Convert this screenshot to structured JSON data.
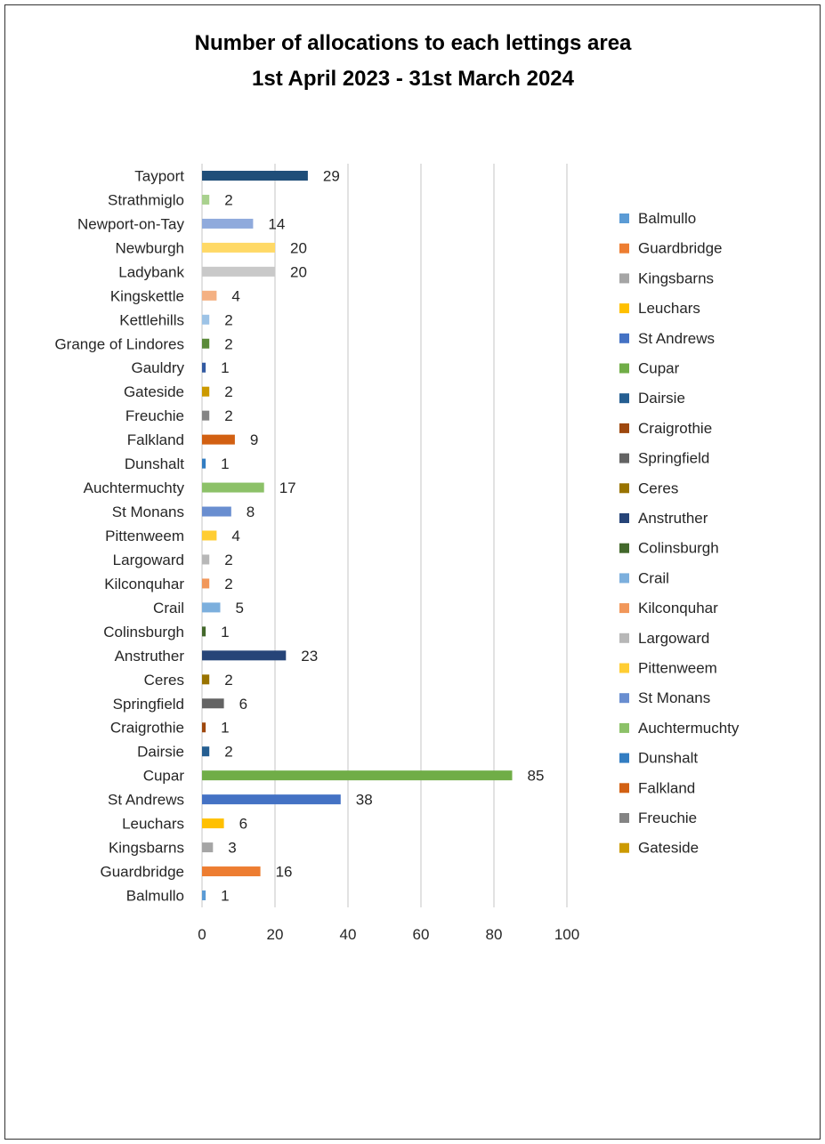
{
  "chart_data": {
    "type": "bar",
    "orientation": "horizontal",
    "title": [
      "Number of allocations to each lettings area",
      "1st April 2023 - 31st March 2024"
    ],
    "xlabel": "",
    "ylabel": "",
    "xlim": [
      0,
      100
    ],
    "x_ticks": [
      0,
      20,
      40,
      60,
      80,
      100
    ],
    "grid": "vertical",
    "legend_position": "right",
    "categories": [
      "Balmullo",
      "Guardbridge",
      "Kingsbarns",
      "Leuchars",
      "St Andrews",
      "Cupar",
      "Dairsie",
      "Craigrothie",
      "Springfield",
      "Ceres",
      "Anstruther",
      "Colinsburgh",
      "Crail",
      "Kilconquhar",
      "Largoward",
      "Pittenweem",
      "St Monans",
      "Auchtermuchty",
      "Dunshalt",
      "Falkland",
      "Freuchie",
      "Gateside",
      "Gauldry",
      "Grange of Lindores",
      "Kettlehills",
      "Kingskettle",
      "Ladybank",
      "Newburgh",
      "Newport-on-Tay",
      "Strathmiglo",
      "Tayport"
    ],
    "values": [
      1,
      16,
      3,
      6,
      38,
      85,
      2,
      1,
      6,
      2,
      23,
      1,
      5,
      2,
      2,
      4,
      8,
      17,
      1,
      9,
      2,
      2,
      1,
      2,
      2,
      4,
      20,
      20,
      14,
      2,
      29
    ],
    "colors": [
      "#5B9BD5",
      "#ED7D31",
      "#A5A5A5",
      "#FFC000",
      "#4472C4",
      "#70AD47",
      "#255E91",
      "#9E480E",
      "#636363",
      "#997300",
      "#264478",
      "#43682B",
      "#7CAFDD",
      "#F1975A",
      "#B7B7B7",
      "#FFCD33",
      "#698ED0",
      "#8CC168",
      "#327DC2",
      "#D26012",
      "#848484",
      "#CC9A00",
      "#335AA1",
      "#5A8A39",
      "#9DC3E6",
      "#F4B183",
      "#C9C9C9",
      "#FFD966",
      "#8FAADC",
      "#A9D18E",
      "#1F4E79"
    ],
    "legend": [
      "Balmullo",
      "Guardbridge",
      "Kingsbarns",
      "Leuchars",
      "St Andrews",
      "Cupar",
      "Dairsie",
      "Craigrothie",
      "Springfield",
      "Ceres",
      "Anstruther",
      "Colinsburgh",
      "Crail",
      "Kilconquhar",
      "Largoward",
      "Pittenweem",
      "St Monans",
      "Auchtermuchty",
      "Dunshalt",
      "Falkland",
      "Freuchie",
      "Gateside"
    ]
  }
}
